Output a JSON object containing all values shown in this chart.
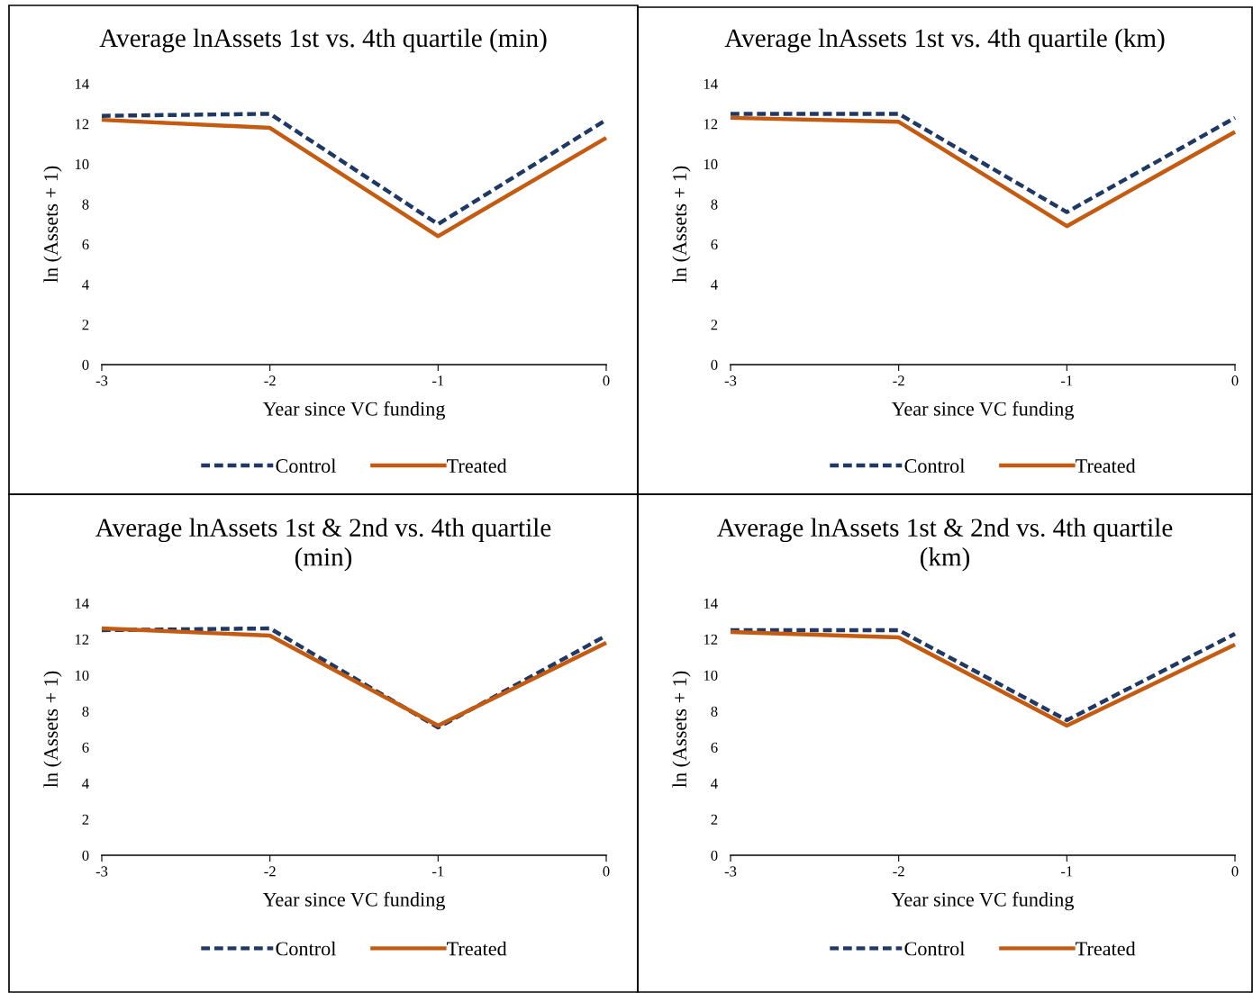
{
  "chart_data": [
    {
      "type": "line",
      "title": "Average lnAssets 1st vs. 4th quartile (min)",
      "xlabel": "Year since VC funding",
      "ylabel": "ln (Assets + 1)",
      "x": [
        -3,
        -2,
        -1,
        0
      ],
      "xlim": [
        -3,
        0
      ],
      "xticks": [
        -3,
        -2,
        -1,
        0
      ],
      "ylim": [
        0,
        14
      ],
      "yticks": [
        0,
        2,
        4,
        6,
        8,
        10,
        12,
        14
      ],
      "grid": false,
      "legend": "bottom",
      "series": [
        {
          "name": "Control",
          "color": "#1f3864",
          "line_style": "dashed",
          "values": [
            12.4,
            12.5,
            7.0,
            12.2
          ]
        },
        {
          "name": "Treated",
          "color": "#c55a11",
          "line_style": "solid",
          "values": [
            12.2,
            11.8,
            6.4,
            11.3
          ]
        }
      ]
    },
    {
      "type": "line",
      "title": "Average lnAssets 1st vs. 4th quartile (km)",
      "xlabel": "Year since VC funding",
      "ylabel": "ln (Assets + 1)",
      "x": [
        -3,
        -2,
        -1,
        0
      ],
      "xlim": [
        -3,
        0
      ],
      "xticks": [
        -3,
        -2,
        -1,
        0
      ],
      "ylim": [
        0,
        14
      ],
      "yticks": [
        0,
        2,
        4,
        6,
        8,
        10,
        12,
        14
      ],
      "grid": false,
      "legend": "bottom",
      "series": [
        {
          "name": "Control",
          "color": "#1f3864",
          "line_style": "dashed",
          "values": [
            12.5,
            12.5,
            7.6,
            12.3
          ]
        },
        {
          "name": "Treated",
          "color": "#c55a11",
          "line_style": "solid",
          "values": [
            12.3,
            12.1,
            6.9,
            11.6
          ]
        }
      ]
    },
    {
      "type": "line",
      "title": "Average lnAssets 1st & 2nd vs. 4th quartile (min)",
      "xlabel": "Year since VC funding",
      "ylabel": "ln (Assets + 1)",
      "x": [
        -3,
        -2,
        -1,
        0
      ],
      "xlim": [
        -3,
        0
      ],
      "xticks": [
        -3,
        -2,
        -1,
        0
      ],
      "ylim": [
        0,
        14
      ],
      "yticks": [
        0,
        2,
        4,
        6,
        8,
        10,
        12,
        14
      ],
      "grid": false,
      "legend": "bottom",
      "series": [
        {
          "name": "Control",
          "color": "#1f3864",
          "line_style": "dashed",
          "values": [
            12.5,
            12.6,
            7.1,
            12.2
          ]
        },
        {
          "name": "Treated",
          "color": "#c55a11",
          "line_style": "solid",
          "values": [
            12.6,
            12.2,
            7.2,
            11.8
          ]
        }
      ]
    },
    {
      "type": "line",
      "title": "Average lnAssets 1st & 2nd vs. 4th quartile (km)",
      "xlabel": "Year since VC funding",
      "ylabel": "ln (Assets + 1)",
      "x": [
        -3,
        -2,
        -1,
        0
      ],
      "xlim": [
        -3,
        0
      ],
      "xticks": [
        -3,
        -2,
        -1,
        0
      ],
      "ylim": [
        0,
        14
      ],
      "yticks": [
        0,
        2,
        4,
        6,
        8,
        10,
        12,
        14
      ],
      "grid": false,
      "legend": "bottom",
      "series": [
        {
          "name": "Control",
          "color": "#1f3864",
          "line_style": "dashed",
          "values": [
            12.5,
            12.5,
            7.5,
            12.3
          ]
        },
        {
          "name": "Treated",
          "color": "#c55a11",
          "line_style": "solid",
          "values": [
            12.4,
            12.1,
            7.2,
            11.7
          ]
        }
      ]
    }
  ]
}
